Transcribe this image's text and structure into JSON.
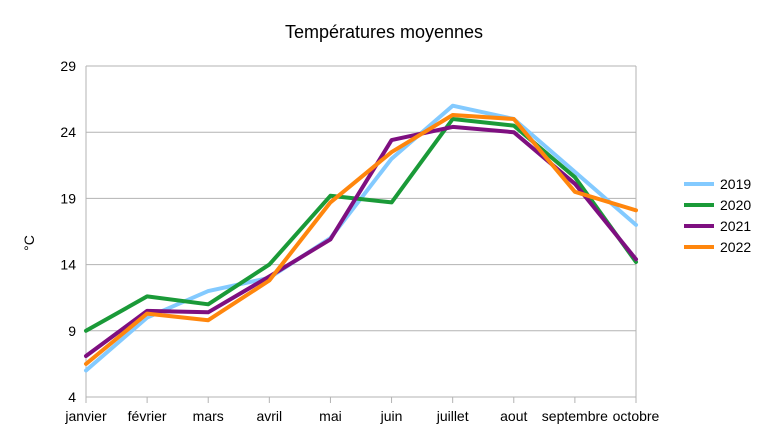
{
  "chart_data": {
    "type": "line",
    "title": "Températures moyennes",
    "xlabel": "",
    "ylabel": "°C",
    "ylim": [
      4,
      29
    ],
    "yticks": [
      4,
      9,
      14,
      19,
      24,
      29
    ],
    "grid": true,
    "legend": "right",
    "categories": [
      "janvier",
      "février",
      "mars",
      "avril",
      "mai",
      "juin",
      "juillet",
      "aout",
      "septembre",
      "octobre"
    ],
    "series": [
      {
        "name": "2019",
        "color": "#83caff",
        "values": [
          6.0,
          10.0,
          12.0,
          13.0,
          16.0,
          22.0,
          26.0,
          25.0,
          21.0,
          17.0
        ]
      },
      {
        "name": "2020",
        "color": "#1a9a38",
        "values": [
          9.0,
          11.6,
          11.0,
          14.0,
          19.2,
          18.7,
          25.0,
          24.5,
          20.6,
          14.2
        ]
      },
      {
        "name": "2021",
        "color": "#7e0f80",
        "values": [
          7.1,
          10.5,
          10.4,
          13.1,
          15.9,
          23.4,
          24.4,
          24.0,
          20.1,
          14.4
        ]
      },
      {
        "name": "2022",
        "color": "#ff860d",
        "values": [
          6.5,
          10.3,
          9.8,
          12.8,
          18.7,
          22.5,
          25.3,
          25.0,
          19.5,
          18.1
        ]
      }
    ]
  }
}
